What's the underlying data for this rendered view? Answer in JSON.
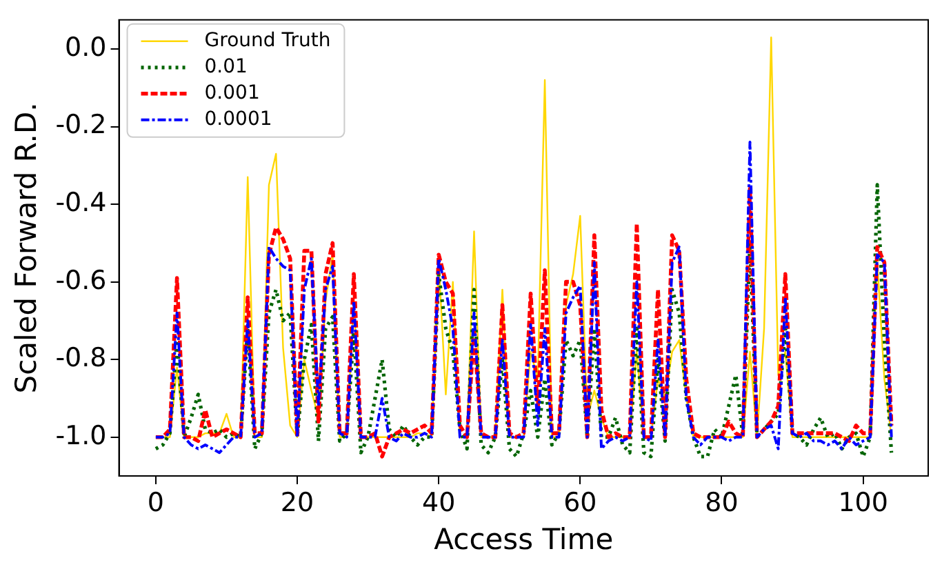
{
  "chart_data": {
    "type": "line",
    "xlabel": "Access Time",
    "ylabel": "Scaled Forward R.D.",
    "x": [
      0,
      1,
      2,
      3,
      4,
      5,
      6,
      7,
      8,
      9,
      10,
      11,
      12,
      13,
      14,
      15,
      16,
      17,
      18,
      19,
      20,
      21,
      22,
      23,
      24,
      25,
      26,
      27,
      28,
      29,
      30,
      31,
      32,
      33,
      34,
      35,
      36,
      37,
      38,
      39,
      40,
      41,
      42,
      43,
      44,
      45,
      46,
      47,
      48,
      49,
      50,
      51,
      52,
      53,
      54,
      55,
      56,
      57,
      58,
      59,
      60,
      61,
      62,
      63,
      64,
      65,
      66,
      67,
      68,
      69,
      70,
      71,
      72,
      73,
      74,
      75,
      76,
      77,
      78,
      79,
      80,
      81,
      82,
      83,
      84,
      85,
      86,
      87,
      88,
      89,
      90,
      91,
      92,
      93,
      94,
      95,
      96,
      97,
      98,
      99,
      100,
      101,
      102,
      103,
      104
    ],
    "xlim": [
      -5.2,
      109.2
    ],
    "xticks": [
      0,
      20,
      40,
      60,
      80,
      100
    ],
    "ylim": [
      -1.1,
      0.075
    ],
    "yticks": [
      {
        "value": -1,
        "label": "-1.0"
      },
      {
        "value": -0.8,
        "label": "-0.8"
      },
      {
        "value": -0.6,
        "label": "-0.6"
      },
      {
        "value": -0.4,
        "label": "-0.4"
      },
      {
        "value": -0.2,
        "label": "-0.2"
      },
      {
        "value": 0,
        "label": "0.0"
      }
    ],
    "grid": false,
    "legend": "top left",
    "marker": "none",
    "series": [
      {
        "name": "Ground Truth",
        "color": "#ffd700",
        "line_style": "solid",
        "values": [
          -1.0,
          -1.0,
          -1.0,
          -0.82,
          -1.0,
          -1.0,
          -1.0,
          -0.99,
          -0.99,
          -0.99,
          -0.94,
          -1.0,
          -1.0,
          -0.33,
          -1.0,
          -1.0,
          -0.35,
          -0.27,
          -0.77,
          -0.97,
          -1.0,
          -0.8,
          -0.88,
          -0.95,
          -0.65,
          -0.53,
          -1.0,
          -1.0,
          -0.65,
          -1.0,
          -1.0,
          -1.0,
          -1.0,
          -1.0,
          -1.0,
          -1.0,
          -1.0,
          -0.99,
          -0.99,
          -1.0,
          -0.55,
          -0.89,
          -0.6,
          -1.0,
          -1.0,
          -0.47,
          -1.0,
          -1.0,
          -1.0,
          -0.62,
          -1.0,
          -1.0,
          -1.0,
          -0.78,
          -0.85,
          -0.08,
          -1.0,
          -1.0,
          -0.66,
          -0.58,
          -0.43,
          -0.95,
          -0.88,
          -0.95,
          -1.0,
          -1.0,
          -1.0,
          -1.0,
          -0.78,
          -1.0,
          -1.0,
          -0.85,
          -0.9,
          -0.78,
          -0.75,
          -0.9,
          -1.0,
          -1.0,
          -1.0,
          -1.0,
          -1.0,
          -1.0,
          -1.0,
          -1.0,
          -0.78,
          -1.0,
          -0.72,
          0.03,
          -0.84,
          -0.78,
          -1.0,
          -1.0,
          -1.0,
          -1.0,
          -1.0,
          -1.0,
          -1.0,
          -1.0,
          -1.0,
          -1.0,
          -1.0,
          -1.0,
          -0.55,
          -0.85,
          -1.0
        ]
      },
      {
        "name": "0.01",
        "color": "#006400",
        "line_style": "dotted",
        "values": [
          -1.03,
          -1.02,
          -0.99,
          -0.75,
          -1.0,
          -0.95,
          -0.89,
          -0.98,
          -0.99,
          -0.98,
          -1.0,
          -0.99,
          -1.0,
          -0.72,
          -1.03,
          -0.99,
          -0.68,
          -0.62,
          -0.7,
          -0.68,
          -1.0,
          -0.8,
          -0.71,
          -1.01,
          -0.72,
          -0.69,
          -1.01,
          -0.99,
          -0.73,
          -1.04,
          -1.0,
          -0.9,
          -0.8,
          -0.98,
          -1.0,
          -0.97,
          -1.0,
          -1.02,
          -1.0,
          -1.0,
          -0.58,
          -0.72,
          -0.78,
          -0.98,
          -1.03,
          -0.62,
          -1.02,
          -1.04,
          -1.0,
          -0.8,
          -1.03,
          -1.05,
          -0.99,
          -0.88,
          -1.0,
          -0.85,
          -1.02,
          -0.99,
          -0.75,
          -0.79,
          -0.75,
          -1.0,
          -0.72,
          -1.0,
          -1.0,
          -0.95,
          -1.02,
          -1.04,
          -0.72,
          -1.04,
          -1.05,
          -0.8,
          -1.01,
          -0.62,
          -0.68,
          -0.9,
          -1.0,
          -1.05,
          -1.05,
          -0.98,
          -1.0,
          -0.92,
          -0.84,
          -1.0,
          -0.5,
          -1.0,
          -0.98,
          -0.96,
          -0.94,
          -0.72,
          -0.99,
          -1.0,
          -1.02,
          -0.98,
          -0.95,
          -1.0,
          -0.99,
          -1.03,
          -1.0,
          -0.99,
          -1.05,
          -1.0,
          -0.35,
          -0.75,
          -1.04
        ]
      },
      {
        "name": "0.001",
        "color": "#ff0000",
        "line_style": "dashed",
        "values": [
          -1.0,
          -1.0,
          -0.98,
          -0.59,
          -1.0,
          -1.0,
          -1.01,
          -0.93,
          -1.0,
          -0.99,
          -0.98,
          -0.99,
          -1.0,
          -0.64,
          -0.99,
          -0.99,
          -0.53,
          -0.46,
          -0.49,
          -0.54,
          -1.0,
          -0.52,
          -0.52,
          -0.96,
          -0.58,
          -0.5,
          -0.99,
          -0.99,
          -0.58,
          -1.0,
          -1.0,
          -0.99,
          -1.05,
          -1.0,
          -0.99,
          -0.98,
          -0.99,
          -0.98,
          -0.97,
          -0.99,
          -0.53,
          -0.6,
          -0.63,
          -0.97,
          -1.0,
          -0.73,
          -0.99,
          -1.0,
          -1.0,
          -0.66,
          -0.99,
          -1.0,
          -0.99,
          -0.63,
          -0.93,
          -0.57,
          -0.99,
          -0.99,
          -0.6,
          -0.6,
          -0.66,
          -1.0,
          -0.48,
          -0.93,
          -1.0,
          -0.99,
          -1.0,
          -1.0,
          -0.45,
          -1.0,
          -1.0,
          -0.62,
          -1.0,
          -0.48,
          -0.52,
          -0.85,
          -0.99,
          -1.0,
          -1.0,
          -1.0,
          -1.0,
          -0.96,
          -0.99,
          -1.0,
          -0.36,
          -1.0,
          -0.98,
          -0.96,
          -0.92,
          -0.58,
          -0.99,
          -0.99,
          -0.99,
          -0.99,
          -0.99,
          -0.99,
          -0.99,
          -1.0,
          -1.01,
          -0.97,
          -0.99,
          -0.99,
          -0.51,
          -0.55,
          -0.97
        ]
      },
      {
        "name": "0.0001",
        "color": "#0000ff",
        "line_style": "dashdot",
        "values": [
          -1.0,
          -1.0,
          -0.99,
          -0.68,
          -1.0,
          -1.02,
          -1.03,
          -1.02,
          -1.03,
          -1.04,
          -1.02,
          -1.0,
          -1.0,
          -0.7,
          -1.0,
          -0.99,
          -0.51,
          -0.54,
          -0.56,
          -0.57,
          -1.0,
          -0.62,
          -0.54,
          -0.92,
          -0.62,
          -0.56,
          -0.99,
          -1.0,
          -0.65,
          -1.0,
          -1.0,
          -1.0,
          -0.9,
          -1.0,
          -1.01,
          -0.99,
          -1.0,
          -1.0,
          -0.99,
          -1.0,
          -0.54,
          -0.62,
          -0.72,
          -1.0,
          -1.0,
          -0.68,
          -1.0,
          -1.0,
          -1.0,
          -0.75,
          -1.0,
          -1.0,
          -1.0,
          -0.71,
          -0.97,
          -0.72,
          -1.0,
          -1.0,
          -0.68,
          -0.64,
          -0.61,
          -1.0,
          -0.55,
          -1.03,
          -1.01,
          -1.0,
          -1.01,
          -1.0,
          -0.6,
          -1.0,
          -1.01,
          -0.75,
          -1.0,
          -0.55,
          -0.51,
          -0.9,
          -1.0,
          -1.02,
          -1.0,
          -1.0,
          -1.0,
          -1.01,
          -1.0,
          -1.0,
          -0.24,
          -1.0,
          -0.98,
          -0.97,
          -1.03,
          -0.64,
          -0.99,
          -1.0,
          -0.99,
          -1.01,
          -1.01,
          -1.02,
          -1.01,
          -1.03,
          -1.0,
          -1.02,
          -1.01,
          -1.0,
          -0.53,
          -0.55,
          -1.0
        ]
      }
    ]
  }
}
